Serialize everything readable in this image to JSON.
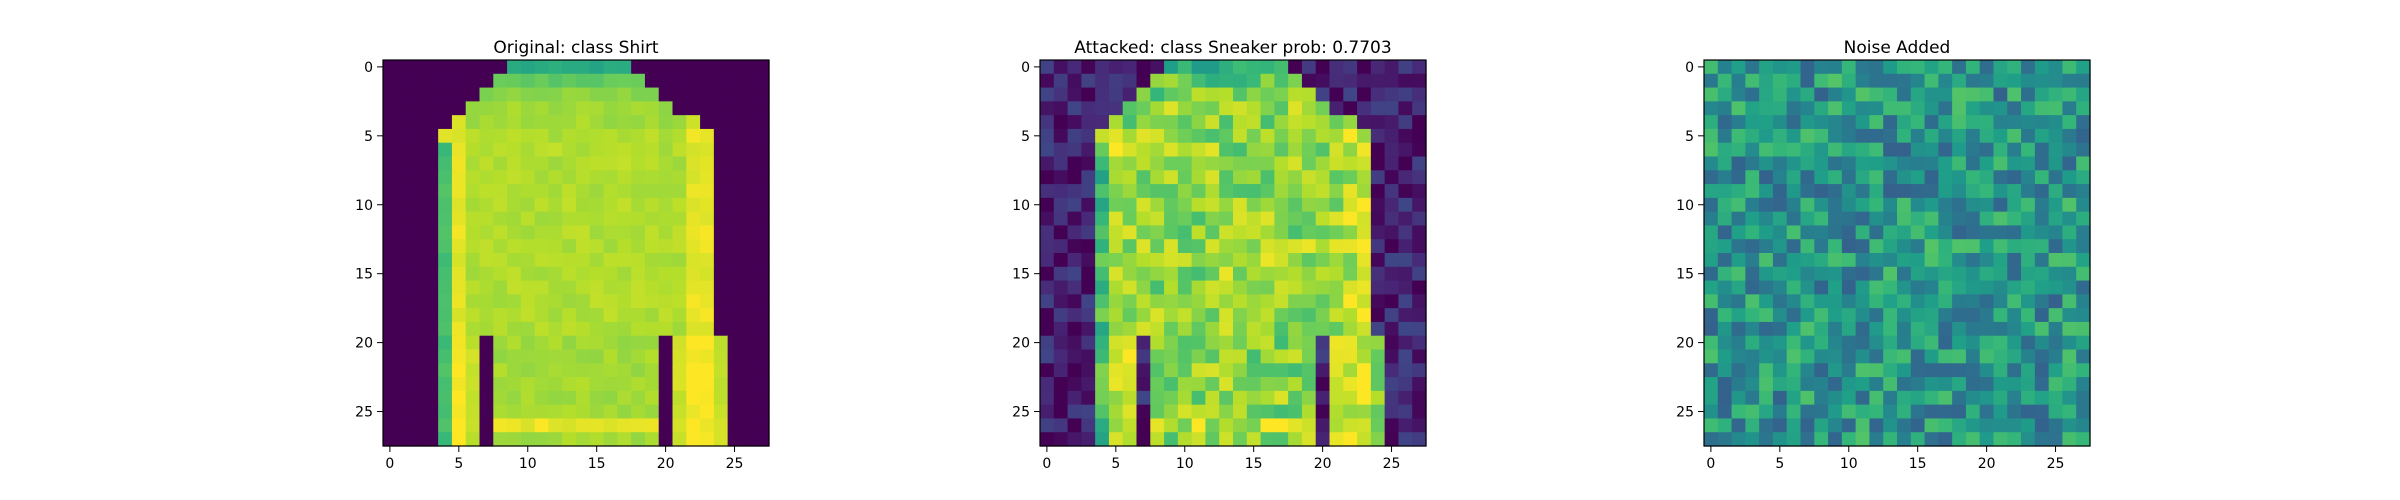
{
  "chart_data": [
    {
      "type": "heatmap",
      "title": "Original: class Shirt",
      "colormap": "viridis",
      "grid": false,
      "xlim": [
        -0.5,
        27.5
      ],
      "ylim": [
        27.5,
        -0.5
      ],
      "xticks": [
        0,
        5,
        10,
        15,
        20,
        25
      ],
      "yticks": [
        0,
        5,
        10,
        15,
        20,
        25
      ],
      "xtick_labels": [
        "0",
        "5",
        "10",
        "15",
        "20",
        "25"
      ],
      "ytick_labels": [
        "0",
        "5",
        "10",
        "15",
        "20",
        "25"
      ],
      "image_size": [
        28,
        28
      ]
    },
    {
      "type": "heatmap",
      "title": "Attacked: class Sneaker prob: 0.7703",
      "colormap": "viridis",
      "grid": false,
      "xlim": [
        -0.5,
        27.5
      ],
      "ylim": [
        27.5,
        -0.5
      ],
      "xticks": [
        0,
        5,
        10,
        15,
        20,
        25
      ],
      "yticks": [
        0,
        5,
        10,
        15,
        20,
        25
      ],
      "xtick_labels": [
        "0",
        "5",
        "10",
        "15",
        "20",
        "25"
      ],
      "ytick_labels": [
        "0",
        "5",
        "10",
        "15",
        "20",
        "25"
      ],
      "image_size": [
        28,
        28
      ]
    },
    {
      "type": "heatmap",
      "title": "Noise Added",
      "colormap": "viridis",
      "grid": false,
      "xlim": [
        -0.5,
        27.5
      ],
      "ylim": [
        27.5,
        -0.5
      ],
      "xticks": [
        0,
        5,
        10,
        15,
        20,
        25
      ],
      "yticks": [
        0,
        5,
        10,
        15,
        20,
        25
      ],
      "xtick_labels": [
        "0",
        "5",
        "10",
        "15",
        "20",
        "25"
      ],
      "ytick_labels": [
        "0",
        "5",
        "10",
        "15",
        "20",
        "25"
      ],
      "image_size": [
        28,
        28
      ]
    }
  ]
}
